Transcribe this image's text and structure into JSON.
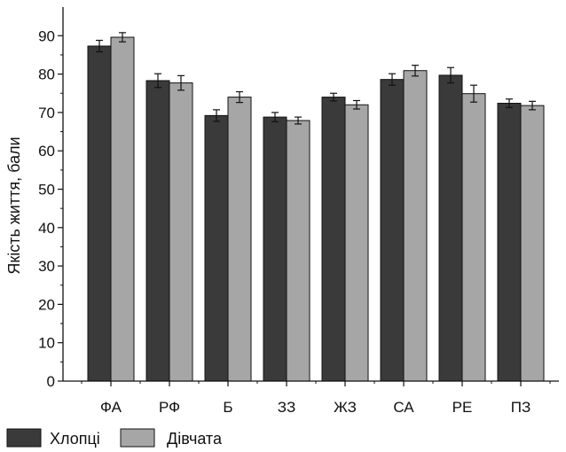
{
  "chart_data": {
    "type": "bar",
    "categories": [
      "ФА",
      "РФ",
      "Б",
      "ЗЗ",
      "ЖЗ",
      "СА",
      "РЕ",
      "ПЗ"
    ],
    "series": [
      {
        "name": "Хлопці",
        "color": "#3a3a3a",
        "values": [
          87.3,
          78.3,
          69.2,
          68.8,
          74.0,
          78.6,
          79.7,
          72.4
        ],
        "errors": [
          1.5,
          1.8,
          1.5,
          1.2,
          1.0,
          1.5,
          2.0,
          1.1
        ]
      },
      {
        "name": "Дівчата",
        "color": "#a6a6a6",
        "values": [
          89.6,
          77.7,
          74.0,
          67.9,
          72.0,
          80.9,
          74.9,
          71.8
        ],
        "errors": [
          1.2,
          1.9,
          1.4,
          0.9,
          1.1,
          1.4,
          2.2,
          1.1
        ]
      }
    ],
    "ylabel": "Якість життя, бали",
    "xlabel": "",
    "ylim": [
      0,
      95
    ],
    "yticks": [
      0,
      10,
      20,
      30,
      40,
      50,
      60,
      70,
      80,
      90
    ],
    "grid": false,
    "legend_position": "bottom-left"
  }
}
